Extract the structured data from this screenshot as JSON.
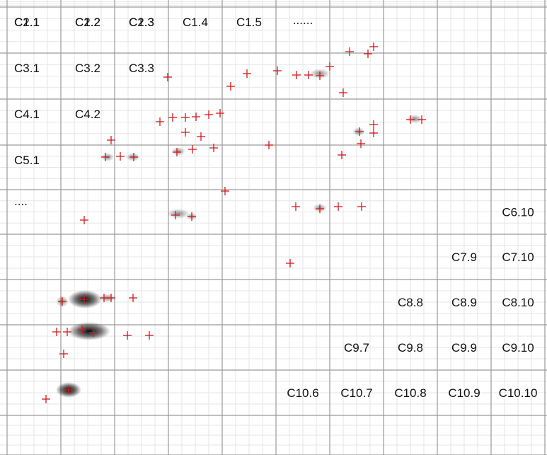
{
  "grid": {
    "rows": 10,
    "cols": 10,
    "minor_per_cell": 4,
    "colors": {
      "major_line": "#9a9a9a",
      "minor_line": "#e6e6e6",
      "background": "#ffffff",
      "marker": "#d41a1a",
      "blob": "#000000"
    }
  },
  "labels": [
    {
      "text": "C1.1",
      "row": 1,
      "col": 1
    },
    {
      "text": "C1.2",
      "row": 1,
      "col": 2
    },
    {
      "text": "C1.3",
      "row": 1,
      "col": 3
    },
    {
      "text": "C1.4",
      "row": 1,
      "col": 4
    },
    {
      "text": "C1.5",
      "row": 1,
      "col": 5
    },
    {
      "text": "......",
      "row": 1,
      "col": 6
    },
    {
      "text": "C2.1",
      "row": 2,
      "col": 1
    },
    {
      "text": "C2.2",
      "row": 2,
      "col": 2
    },
    {
      "text": "C2.3",
      "row": 2,
      "col": 3
    },
    {
      "text": "C3.1",
      "row": 3,
      "col": 1
    },
    {
      "text": "C3.2",
      "row": 3,
      "col": 2
    },
    {
      "text": "C3.3",
      "row": 3,
      "col": 3
    },
    {
      "text": "C4.1",
      "row": 4,
      "col": 1
    },
    {
      "text": "C4.2",
      "row": 4,
      "col": 2
    },
    {
      "text": "C5.1",
      "row": 5,
      "col": 1
    },
    {
      "text": "....",
      "row": 6,
      "col": 1
    },
    {
      "text": "C6.10",
      "row": 6,
      "col": 10
    },
    {
      "text": "C7.9",
      "row": 7,
      "col": 9
    },
    {
      "text": "C7.10",
      "row": 7,
      "col": 10
    },
    {
      "text": "C8.8",
      "row": 8,
      "col": 8
    },
    {
      "text": "C8.9",
      "row": 8,
      "col": 9
    },
    {
      "text": "C8.10",
      "row": 8,
      "col": 10
    },
    {
      "text": "C9.7",
      "row": 9,
      "col": 7
    },
    {
      "text": "C9.8",
      "row": 9,
      "col": 8
    },
    {
      "text": "C9.9",
      "row": 9,
      "col": 9
    },
    {
      "text": "C9.10",
      "row": 9,
      "col": 10
    },
    {
      "text": "C10.6",
      "row": 10,
      "col": 6
    },
    {
      "text": "C10.7",
      "row": 10,
      "col": 7
    },
    {
      "text": "C10.8",
      "row": 10,
      "col": 8
    },
    {
      "text": "C10.9",
      "row": 10,
      "col": 9
    },
    {
      "text": "C10.10",
      "row": 10,
      "col": 10
    }
  ],
  "peak_count": 64
}
